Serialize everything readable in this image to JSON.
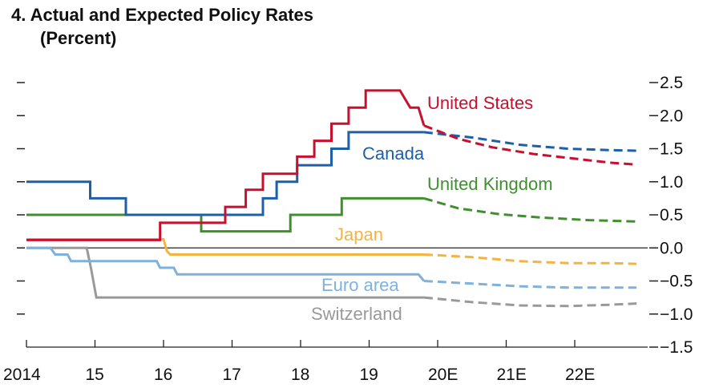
{
  "chart_data": {
    "type": "line",
    "title": "4. Actual and Expected Policy Rates",
    "subtitle": "(Percent)",
    "xlabel": "",
    "ylabel": "",
    "x_tick_labels": [
      "2014",
      "15",
      "16",
      "17",
      "18",
      "19",
      "20E",
      "21E",
      "22E"
    ],
    "y_tick_labels": [
      "2.5",
      "2.0",
      "1.5",
      "1.0",
      "0.5",
      "0.0",
      "−0.5",
      "−1.0",
      "−1.5"
    ],
    "ylim": [
      -1.5,
      2.5
    ],
    "xlim": [
      2014.0,
      2022.9
    ],
    "forecast_start": 2019.8,
    "grid": false,
    "zero_line": true,
    "series": [
      {
        "name": "United States",
        "color": "#c8102e",
        "points": [
          [
            2014.0,
            0.12
          ],
          [
            2015.95,
            0.12
          ],
          [
            2015.95,
            0.38
          ],
          [
            2016.9,
            0.38
          ],
          [
            2016.9,
            0.62
          ],
          [
            2017.2,
            0.62
          ],
          [
            2017.2,
            0.88
          ],
          [
            2017.45,
            0.88
          ],
          [
            2017.45,
            1.12
          ],
          [
            2017.95,
            1.12
          ],
          [
            2017.95,
            1.38
          ],
          [
            2018.2,
            1.38
          ],
          [
            2018.2,
            1.62
          ],
          [
            2018.45,
            1.62
          ],
          [
            2018.45,
            1.88
          ],
          [
            2018.7,
            1.88
          ],
          [
            2018.7,
            2.12
          ],
          [
            2018.95,
            2.12
          ],
          [
            2018.95,
            2.38
          ],
          [
            2019.45,
            2.38
          ],
          [
            2019.6,
            2.12
          ],
          [
            2019.72,
            2.12
          ],
          [
            2019.8,
            1.85
          ]
        ],
        "forecast": [
          [
            2019.8,
            1.85
          ],
          [
            2020.3,
            1.65
          ],
          [
            2020.8,
            1.52
          ],
          [
            2021.4,
            1.42
          ],
          [
            2022.0,
            1.35
          ],
          [
            2022.5,
            1.29
          ],
          [
            2022.9,
            1.26
          ]
        ]
      },
      {
        "name": "Canada",
        "color": "#1f5fa8",
        "points": [
          [
            2014.0,
            1.0
          ],
          [
            2014.93,
            1.0
          ],
          [
            2014.93,
            0.75
          ],
          [
            2015.45,
            0.75
          ],
          [
            2015.45,
            0.5
          ],
          [
            2017.45,
            0.5
          ],
          [
            2017.45,
            0.75
          ],
          [
            2017.65,
            0.75
          ],
          [
            2017.65,
            1.0
          ],
          [
            2017.95,
            1.0
          ],
          [
            2017.95,
            1.25
          ],
          [
            2018.45,
            1.25
          ],
          [
            2018.45,
            1.5
          ],
          [
            2018.7,
            1.5
          ],
          [
            2018.7,
            1.75
          ],
          [
            2019.8,
            1.75
          ]
        ],
        "forecast": [
          [
            2019.8,
            1.75
          ],
          [
            2020.5,
            1.67
          ],
          [
            2021.2,
            1.56
          ],
          [
            2021.9,
            1.5
          ],
          [
            2022.5,
            1.48
          ],
          [
            2022.9,
            1.47
          ]
        ]
      },
      {
        "name": "United Kingdom",
        "color": "#3f8f2f",
        "points": [
          [
            2014.0,
            0.5
          ],
          [
            2016.55,
            0.5
          ],
          [
            2016.55,
            0.25
          ],
          [
            2017.85,
            0.25
          ],
          [
            2017.85,
            0.5
          ],
          [
            2018.6,
            0.5
          ],
          [
            2018.6,
            0.75
          ],
          [
            2019.8,
            0.75
          ]
        ],
        "forecast": [
          [
            2019.8,
            0.75
          ],
          [
            2020.3,
            0.6
          ],
          [
            2020.9,
            0.51
          ],
          [
            2021.5,
            0.46
          ],
          [
            2022.2,
            0.42
          ],
          [
            2022.9,
            0.4
          ]
        ]
      },
      {
        "name": "Japan",
        "color": "#f5b342",
        "points": [
          [
            2014.0,
            0.13
          ],
          [
            2016.0,
            0.13
          ],
          [
            2016.05,
            -0.05
          ],
          [
            2016.1,
            -0.1
          ],
          [
            2019.8,
            -0.1
          ]
        ],
        "forecast": [
          [
            2019.8,
            -0.1
          ],
          [
            2020.5,
            -0.14
          ],
          [
            2021.2,
            -0.2
          ],
          [
            2021.9,
            -0.23
          ],
          [
            2022.5,
            -0.23
          ],
          [
            2022.9,
            -0.24
          ]
        ]
      },
      {
        "name": "Euro area",
        "color": "#7fb1dc",
        "points": [
          [
            2014.0,
            0.0
          ],
          [
            2014.35,
            0.0
          ],
          [
            2014.42,
            -0.1
          ],
          [
            2014.6,
            -0.1
          ],
          [
            2014.65,
            -0.2
          ],
          [
            2015.9,
            -0.2
          ],
          [
            2015.95,
            -0.3
          ],
          [
            2016.15,
            -0.3
          ],
          [
            2016.2,
            -0.4
          ],
          [
            2019.72,
            -0.4
          ],
          [
            2019.8,
            -0.5
          ]
        ],
        "forecast": [
          [
            2019.8,
            -0.5
          ],
          [
            2020.5,
            -0.54
          ],
          [
            2021.2,
            -0.58
          ],
          [
            2021.9,
            -0.6
          ],
          [
            2022.5,
            -0.6
          ],
          [
            2022.9,
            -0.6
          ]
        ]
      },
      {
        "name": "Switzerland",
        "color": "#999999",
        "points": [
          [
            2014.0,
            0.0
          ],
          [
            2014.88,
            0.0
          ],
          [
            2014.94,
            -0.3
          ],
          [
            2015.02,
            -0.75
          ],
          [
            2019.8,
            -0.75
          ]
        ],
        "forecast": [
          [
            2019.8,
            -0.75
          ],
          [
            2020.5,
            -0.82
          ],
          [
            2021.2,
            -0.87
          ],
          [
            2021.9,
            -0.88
          ],
          [
            2022.5,
            -0.86
          ],
          [
            2022.9,
            -0.84
          ]
        ]
      }
    ]
  }
}
